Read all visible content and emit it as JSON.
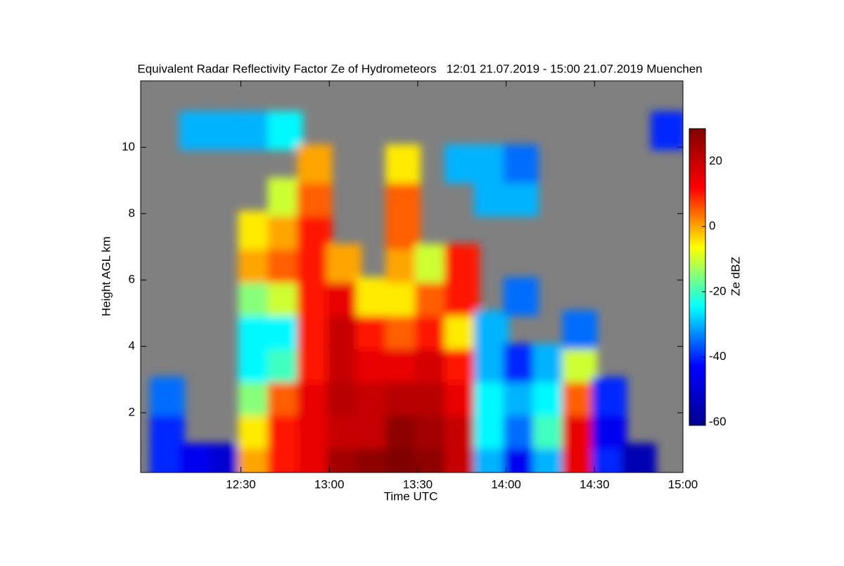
{
  "chart_data": {
    "type": "heatmap",
    "title": "Equivalent Radar Reflectivity Factor Ze of Hydrometeors   12:01 21.07.2019 - 15:00 21.07.2019 Muenchen",
    "x_label": "Time UTC",
    "y_label": "Height AGL km",
    "colorbar_label": "Ze dBZ",
    "x": [
      725,
      735,
      745,
      755,
      765,
      775,
      785,
      795,
      805,
      815,
      825,
      835,
      845,
      855,
      865,
      875,
      885,
      895
    ],
    "y": [
      0.5,
      1.5,
      2.5,
      3.5,
      4.5,
      5.5,
      6.5,
      7.5,
      8.5,
      9.5,
      10.5,
      11.5
    ],
    "z": [
      [
        -40,
        -40,
        -35,
        null,
        null,
        null,
        null,
        null,
        null,
        null,
        null,
        null
      ],
      [
        -45,
        null,
        null,
        null,
        null,
        null,
        null,
        null,
        null,
        null,
        -30,
        null
      ],
      [
        -50,
        null,
        null,
        null,
        null,
        null,
        null,
        null,
        null,
        null,
        -30,
        null
      ],
      [
        0,
        -5,
        -15,
        -25,
        -25,
        -15,
        0,
        -5,
        null,
        null,
        -30,
        null
      ],
      [
        10,
        10,
        5,
        -20,
        -25,
        -10,
        5,
        0,
        -10,
        null,
        -25,
        null
      ],
      [
        15,
        15,
        15,
        10,
        10,
        10,
        10,
        10,
        5,
        0,
        null,
        null
      ],
      [
        25,
        20,
        22,
        20,
        20,
        15,
        0,
        null,
        null,
        null,
        null,
        null
      ],
      [
        28,
        20,
        20,
        15,
        10,
        -5,
        null,
        null,
        null,
        null,
        null,
        null
      ],
      [
        30,
        28,
        22,
        15,
        5,
        -5,
        0,
        5,
        5,
        -5,
        null,
        null
      ],
      [
        28,
        25,
        22,
        18,
        10,
        5,
        -10,
        null,
        null,
        null,
        null,
        null
      ],
      [
        20,
        20,
        15,
        10,
        -5,
        10,
        10,
        null,
        null,
        -30,
        null,
        null
      ],
      [
        -30,
        -25,
        -25,
        -30,
        -30,
        null,
        null,
        null,
        -30,
        -30,
        null,
        null
      ],
      [
        -45,
        -35,
        -30,
        -40,
        null,
        -35,
        null,
        null,
        -30,
        -35,
        null,
        null
      ],
      [
        -30,
        -20,
        -25,
        -30,
        null,
        null,
        null,
        null,
        null,
        null,
        null,
        null
      ],
      [
        15,
        15,
        5,
        -10,
        -35,
        null,
        null,
        null,
        null,
        null,
        null,
        null
      ],
      [
        -40,
        -45,
        -40,
        null,
        null,
        null,
        null,
        null,
        null,
        null,
        null,
        null
      ],
      [
        -55,
        null,
        null,
        null,
        null,
        null,
        null,
        null,
        null,
        null,
        null,
        null
      ],
      [
        null,
        null,
        null,
        null,
        null,
        null,
        null,
        null,
        null,
        null,
        -40,
        null
      ]
    ],
    "xlim": [
      716,
      900
    ],
    "ylim": [
      0.2,
      12
    ],
    "zlim": [
      -61,
      30
    ],
    "xticks": [
      {
        "value": 750,
        "label": "12:30"
      },
      {
        "value": 780,
        "label": "13:00"
      },
      {
        "value": 810,
        "label": "13:30"
      },
      {
        "value": 840,
        "label": "14:00"
      },
      {
        "value": 870,
        "label": "14:30"
      },
      {
        "value": 900,
        "label": "15:00"
      }
    ],
    "yticks": [
      2,
      4,
      6,
      8,
      10
    ],
    "zticks": [
      -60,
      -40,
      -20,
      0,
      20
    ],
    "colorscale": [
      "#00008f",
      "#0000ff",
      "#00ffff",
      "#ffff00",
      "#ff0000",
      "#800000"
    ],
    "background": "#808080"
  }
}
